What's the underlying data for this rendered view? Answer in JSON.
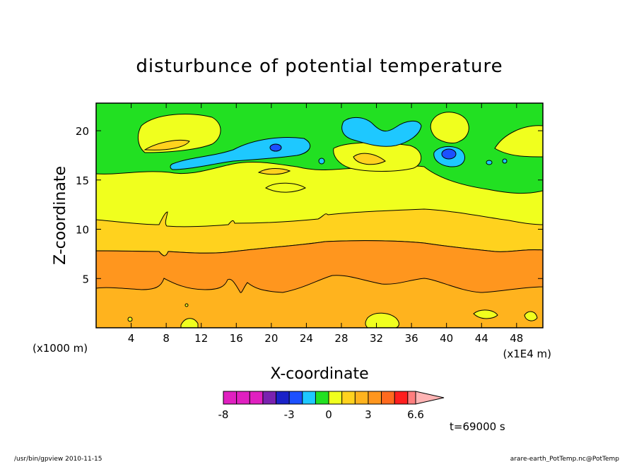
{
  "chart_data": {
    "type": "heatmap",
    "title": "disturbunce of potential temperature",
    "xlabel": "X-coordinate",
    "ylabel": "Z-coordinate",
    "x_unit_left": "(x1000 m)",
    "x_unit_right": "(x1E4 m)",
    "xlim": [
      0,
      51
    ],
    "ylim": [
      0,
      22.8
    ],
    "x_ticks": [
      4,
      8,
      12,
      16,
      20,
      24,
      28,
      32,
      36,
      40,
      44,
      48
    ],
    "x_tick_labels": [
      "4",
      "8",
      "12",
      "16",
      "20",
      "24",
      "28",
      "32",
      "36",
      "40",
      "44",
      "48"
    ],
    "y_ticks": [
      5,
      10,
      15,
      20
    ],
    "y_tick_labels": [
      "5",
      "10",
      "15",
      "20"
    ],
    "colorbar": {
      "levels": [
        -8,
        -7,
        -6,
        -5,
        -4,
        -3,
        -2,
        -1,
        0,
        1,
        2,
        3,
        4,
        5,
        6,
        6.6
      ],
      "labels": [
        "-8",
        "-3",
        "0",
        "3",
        "6.6"
      ],
      "colors": [
        "#e020c0",
        "#e020c0",
        "#e020c0",
        "#7a22b0",
        "#1a22c8",
        "#1c50ff",
        "#1ec8ff",
        "#22e022",
        "#f0ff1e",
        "#ffd21e",
        "#ffb31e",
        "#ff961e",
        "#ff6a1e",
        "#ff1e1e",
        "#ff7e7e",
        "#ffb4b4"
      ]
    },
    "bands": [
      {
        "value_range": "0 to 1",
        "color": "#ffd21e"
      },
      {
        "value_range": "1 to 2",
        "color": "#ffb31e"
      },
      {
        "value_range": "2 to 3",
        "color": "#ff961e"
      },
      {
        "value_range": "1 to 2",
        "color": "#ffb31e"
      },
      {
        "value_range": "0 to 1",
        "color": "#ffd21e"
      },
      {
        "value_range": "-1 to 0",
        "color": "#f0ff1e"
      },
      {
        "value_range": "-2 to -1",
        "color": "#22e022"
      }
    ],
    "annotation": "t=69000 s"
  },
  "footer": {
    "left": "/usr/bin/gpview  2010-11-15",
    "right": "arare-earth_PotTemp.nc@PotTemp"
  }
}
